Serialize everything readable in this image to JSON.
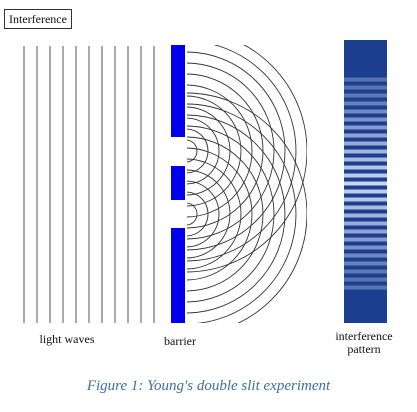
{
  "title": "Interference",
  "labels": {
    "light_waves": "light waves",
    "barrier": "barrier",
    "pattern_line1": "interference",
    "pattern_line2": "pattern"
  },
  "caption": "Figure 1: Young's double slit experiment",
  "colors": {
    "barrier": "#0000ee",
    "pattern_base": "#1d3f8f",
    "pattern_fringe": "#c9d6f2",
    "lines": "#555555"
  }
}
